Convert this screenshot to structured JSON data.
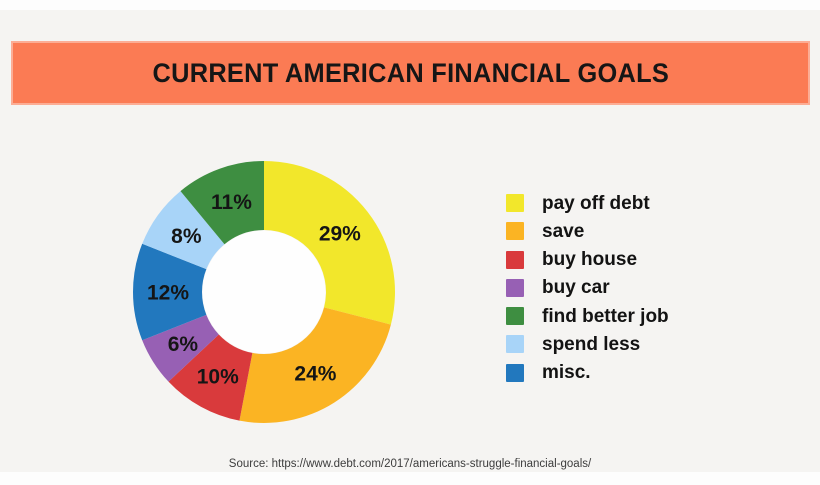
{
  "page": {
    "background_color": "#f5f4f2",
    "title_banner": {
      "text": "CURRENT AMERICAN FINANCIAL GOALS",
      "bg_color": "#fb7b54"
    },
    "source": "Source: https://www.debt.com/2017/americans-struggle-financial-goals/"
  },
  "chart_data": {
    "type": "pie",
    "subtype": "donut",
    "title": "CURRENT AMERICAN FINANCIAL GOALS",
    "legend_position": "right",
    "data_label_format": "percent",
    "hole_color": "#fefefe",
    "start_angle_deg": 0,
    "direction": "clockwise",
    "segments": [
      {
        "label": "pay off debt",
        "value": 29,
        "color": "#f2e72b",
        "data_label": "29%"
      },
      {
        "label": "save",
        "value": 24,
        "color": "#fbb423",
        "data_label": "24%"
      },
      {
        "label": "buy house",
        "value": 10,
        "color": "#d93a3c",
        "data_label": "10%"
      },
      {
        "label": "buy car",
        "value": 6,
        "color": "#9760b4",
        "data_label": "6%"
      },
      {
        "label": "find better job",
        "value": 11,
        "color": "#3e8e41",
        "data_label": "11%"
      },
      {
        "label": "spend less",
        "value": 8,
        "color": "#a8d4f8",
        "data_label": "8%"
      },
      {
        "label": "misc.",
        "value": 12,
        "color": "#2278be",
        "data_label": "12%"
      }
    ],
    "draw_order_clockwise_from_top": [
      0,
      1,
      2,
      3,
      6,
      5,
      4
    ]
  }
}
